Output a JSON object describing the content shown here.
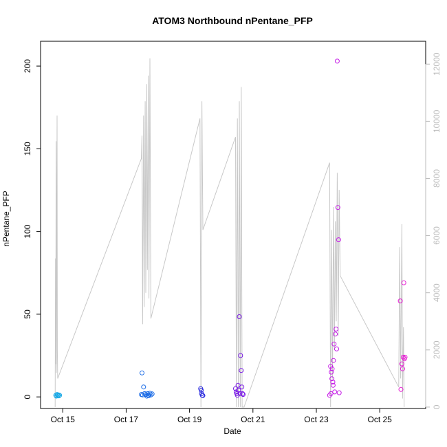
{
  "chart_data": {
    "type": "scatter",
    "title": "ATOM3 Northbound nPentane_PFP",
    "xlabel": "Date",
    "ylabel": "nPentane_PFP",
    "xlim": [
      14.3,
      26.45
    ],
    "ylim": [
      -7,
      215
    ],
    "y2lim": [
      -50,
      12800
    ],
    "x_ticks": [
      {
        "value": 15,
        "label": "Oct 15"
      },
      {
        "value": 17,
        "label": "Oct 17"
      },
      {
        "value": 19,
        "label": "Oct 19"
      },
      {
        "value": 21,
        "label": "Oct 21"
      },
      {
        "value": 23,
        "label": "Oct 23"
      },
      {
        "value": 25,
        "label": "Oct 25"
      }
    ],
    "y_ticks": [
      0,
      50,
      100,
      150,
      200
    ],
    "y2_ticks": [
      0,
      2000,
      4000,
      6000,
      8000,
      10000,
      12000
    ],
    "grid": false,
    "line_series": {
      "color": "#c8c8c8",
      "axis": "right",
      "points": [
        [
          14.76,
          0
        ],
        [
          14.77,
          5200
        ],
        [
          14.78,
          1500
        ],
        [
          14.79,
          9300
        ],
        [
          14.8,
          1200
        ],
        [
          14.82,
          10200
        ],
        [
          14.83,
          2000
        ],
        [
          14.84,
          1000
        ],
        [
          17.48,
          8700
        ],
        [
          17.5,
          9500
        ],
        [
          17.52,
          2900
        ],
        [
          17.55,
          10200
        ],
        [
          17.57,
          3500
        ],
        [
          17.6,
          10700
        ],
        [
          17.62,
          4000
        ],
        [
          17.65,
          11300
        ],
        [
          17.67,
          4800
        ],
        [
          17.7,
          11600
        ],
        [
          17.72,
          3800
        ],
        [
          17.75,
          12200
        ],
        [
          17.78,
          3100
        ],
        [
          19.33,
          10100
        ],
        [
          19.36,
          0
        ],
        [
          19.39,
          10700
        ],
        [
          19.42,
          6200
        ],
        [
          20.45,
          9450
        ],
        [
          20.48,
          0
        ],
        [
          20.51,
          10100
        ],
        [
          20.54,
          0
        ],
        [
          20.57,
          10700
        ],
        [
          20.6,
          0
        ],
        [
          20.63,
          11200
        ],
        [
          20.66,
          0
        ],
        [
          20.72,
          0
        ],
        [
          23.42,
          8550
        ],
        [
          23.45,
          0
        ],
        [
          23.48,
          6200
        ],
        [
          23.51,
          1000
        ],
        [
          23.54,
          7000
        ],
        [
          23.57,
          2000
        ],
        [
          23.6,
          6500
        ],
        [
          23.63,
          3000
        ],
        [
          23.66,
          8200
        ],
        [
          23.69,
          2500
        ],
        [
          23.72,
          7600
        ],
        [
          23.75,
          4600
        ],
        [
          25.6,
          700
        ],
        [
          25.63,
          5600
        ],
        [
          25.66,
          1000
        ],
        [
          25.7,
          6400
        ],
        [
          25.72,
          300
        ],
        [
          25.75,
          2800
        ],
        [
          25.77,
          0
        ]
      ]
    },
    "scatter_series": [
      {
        "color": "#1aa9e6",
        "points": [
          [
            14.78,
            1
          ],
          [
            14.8,
            0.5
          ],
          [
            14.82,
            1.5
          ],
          [
            14.84,
            0.8
          ],
          [
            14.86,
            1.2
          ],
          [
            14.88,
            0.6
          ],
          [
            14.9,
            1.0
          ]
        ]
      },
      {
        "color": "#1a6be6",
        "points": [
          [
            17.5,
            14.5
          ],
          [
            17.55,
            6
          ],
          [
            17.48,
            1.5
          ],
          [
            17.52,
            1.2
          ],
          [
            17.58,
            2
          ],
          [
            17.62,
            1.5
          ],
          [
            17.65,
            0.5
          ],
          [
            17.68,
            2
          ],
          [
            17.7,
            1
          ],
          [
            17.72,
            0.8
          ],
          [
            17.75,
            2.2
          ],
          [
            17.78,
            1.2
          ],
          [
            17.82,
            1.8
          ]
        ]
      },
      {
        "color": "#2b2bde",
        "points": [
          [
            19.35,
            5
          ],
          [
            19.37,
            4
          ],
          [
            19.38,
            2
          ],
          [
            19.4,
            1
          ],
          [
            19.42,
            0.8
          ]
        ]
      },
      {
        "color": "#7a1ae6",
        "points": [
          [
            20.45,
            5
          ],
          [
            20.47,
            3
          ],
          [
            20.49,
            2
          ],
          [
            20.51,
            1
          ],
          [
            20.53,
            7
          ],
          [
            20.55,
            4
          ],
          [
            20.57,
            48.5
          ],
          [
            20.59,
            2
          ],
          [
            20.61,
            25
          ],
          [
            20.63,
            16
          ],
          [
            20.65,
            6
          ],
          [
            20.67,
            2
          ],
          [
            20.69,
            1.5
          ]
        ]
      },
      {
        "color": "#c51ae6",
        "points": [
          [
            23.42,
            1
          ],
          [
            23.45,
            18.5
          ],
          [
            23.47,
            15
          ],
          [
            23.49,
            11
          ],
          [
            23.5,
            17
          ],
          [
            23.52,
            9
          ],
          [
            23.54,
            22
          ],
          [
            23.56,
            32
          ],
          [
            23.58,
            3
          ],
          [
            23.6,
            38
          ],
          [
            23.62,
            41
          ],
          [
            23.64,
            29
          ],
          [
            23.66,
            203
          ],
          [
            23.68,
            114.5
          ],
          [
            23.7,
            95
          ],
          [
            23.72,
            2.5
          ],
          [
            23.46,
            2
          ],
          [
            23.53,
            7
          ]
        ]
      },
      {
        "color": "#e61ad3",
        "points": [
          [
            25.65,
            58
          ],
          [
            25.67,
            4.5
          ],
          [
            25.7,
            20
          ],
          [
            25.72,
            17
          ],
          [
            25.74,
            24
          ],
          [
            25.76,
            69
          ],
          [
            25.78,
            23
          ],
          [
            25.8,
            24
          ]
        ]
      }
    ]
  }
}
